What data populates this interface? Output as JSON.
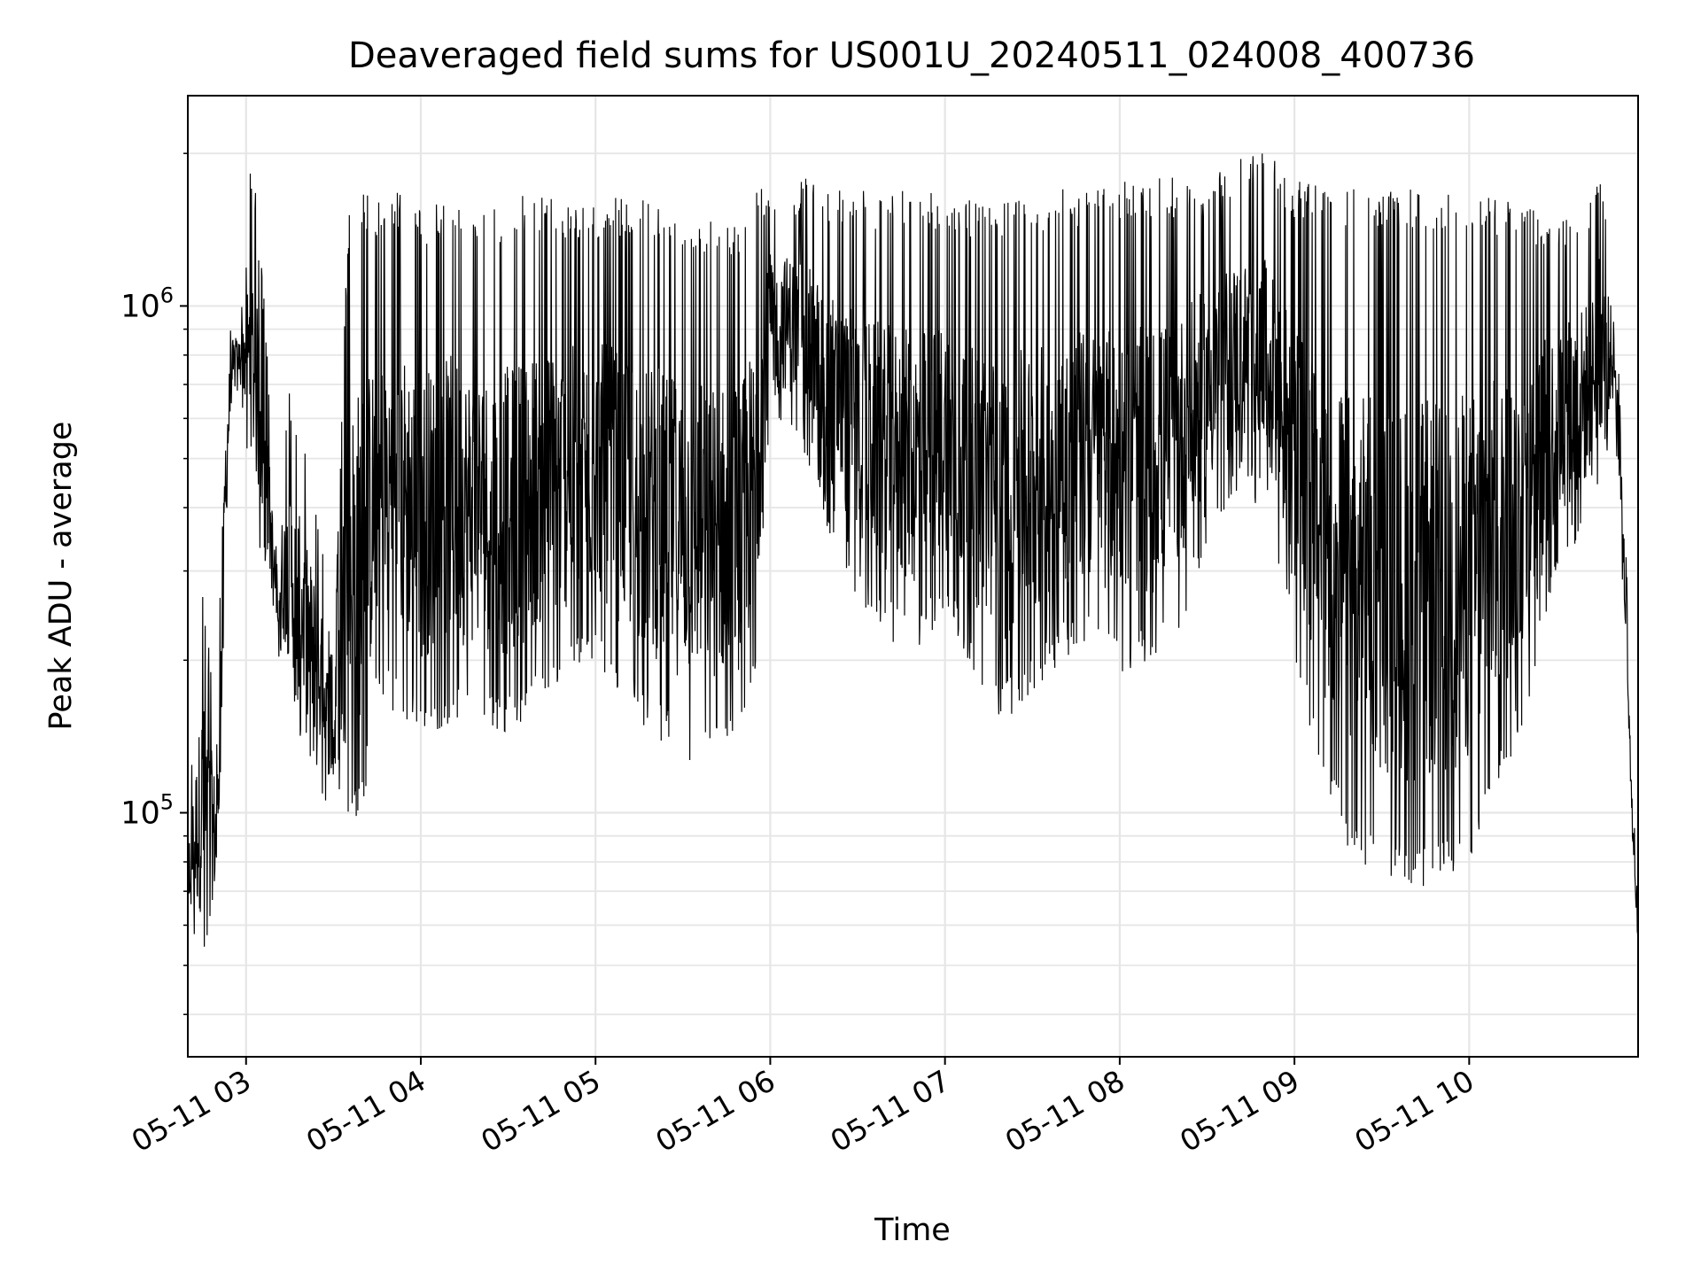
{
  "chart_data": {
    "type": "line",
    "title": "Deaveraged field sums for US001U_20240511_024008_400736",
    "xlabel": "Time",
    "ylabel": "Peak ADU - average",
    "yscale": "log",
    "grid": true,
    "legend": "none",
    "line_color": "#000000",
    "xlim": [
      "2024-05-11 02:40",
      "2024-05-11 10:58"
    ],
    "ylim": [
      33000,
      2600000
    ],
    "x_ticks": [
      {
        "value": "2024-05-11 03:00",
        "label": "05-11 03"
      },
      {
        "value": "2024-05-11 04:00",
        "label": "05-11 04"
      },
      {
        "value": "2024-05-11 05:00",
        "label": "05-11 05"
      },
      {
        "value": "2024-05-11 06:00",
        "label": "05-11 06"
      },
      {
        "value": "2024-05-11 07:00",
        "label": "05-11 07"
      },
      {
        "value": "2024-05-11 08:00",
        "label": "05-11 08"
      },
      {
        "value": "2024-05-11 09:00",
        "label": "05-11 09"
      },
      {
        "value": "2024-05-11 10:00",
        "label": "05-11 10"
      }
    ],
    "y_ticks": [
      {
        "value": 100000,
        "base": "10",
        "exp": "5"
      },
      {
        "value": 1000000,
        "base": "10",
        "exp": "6"
      }
    ],
    "series": [
      {
        "x": [
          "2024-05-11 02:40",
          "2024-05-11 02:45",
          "2024-05-11 02:50",
          "2024-05-11 02:53",
          "2024-05-11 02:55",
          "2024-05-11 02:58",
          "2024-05-11 03:02",
          "2024-05-11 03:06",
          "2024-05-11 03:10",
          "2024-05-11 03:15",
          "2024-05-11 03:20",
          "2024-05-11 03:25",
          "2024-05-11 03:30",
          "2024-05-11 03:35",
          "2024-05-11 03:40",
          "2024-05-11 03:45",
          "2024-05-11 03:50",
          "2024-05-11 03:55",
          "2024-05-11 04:00",
          "2024-05-11 04:10",
          "2024-05-11 04:20",
          "2024-05-11 04:30",
          "2024-05-11 04:40",
          "2024-05-11 04:50",
          "2024-05-11 05:00",
          "2024-05-11 05:10",
          "2024-05-11 05:20",
          "2024-05-11 05:30",
          "2024-05-11 05:40",
          "2024-05-11 05:50",
          "2024-05-11 05:55",
          "2024-05-11 06:00",
          "2024-05-11 06:10",
          "2024-05-11 06:20",
          "2024-05-11 06:30",
          "2024-05-11 06:40",
          "2024-05-11 06:50",
          "2024-05-11 07:00",
          "2024-05-11 07:10",
          "2024-05-11 07:20",
          "2024-05-11 07:30",
          "2024-05-11 07:40",
          "2024-05-11 07:50",
          "2024-05-11 08:00",
          "2024-05-11 08:10",
          "2024-05-11 08:20",
          "2024-05-11 08:30",
          "2024-05-11 08:40",
          "2024-05-11 08:50",
          "2024-05-11 09:00",
          "2024-05-11 09:10",
          "2024-05-11 09:20",
          "2024-05-11 09:30",
          "2024-05-11 09:40",
          "2024-05-11 09:50",
          "2024-05-11 10:00",
          "2024-05-11 10:10",
          "2024-05-11 10:20",
          "2024-05-11 10:30",
          "2024-05-11 10:40",
          "2024-05-11 10:45",
          "2024-05-11 10:50",
          "2024-05-11 10:53",
          "2024-05-11 10:56",
          "2024-05-11 10:58"
        ],
        "low": [
          60000,
          48000,
          60000,
          320000,
          600000,
          700000,
          400000,
          300000,
          220000,
          160000,
          130000,
          110000,
          100000,
          95000,
          100000,
          160000,
          160000,
          150000,
          140000,
          150000,
          150000,
          140000,
          160000,
          180000,
          200000,
          160000,
          140000,
          125000,
          125000,
          130000,
          180000,
          600000,
          550000,
          350000,
          260000,
          220000,
          200000,
          250000,
          180000,
          150000,
          170000,
          200000,
          210000,
          190000,
          190000,
          220000,
          340000,
          420000,
          400000,
          200000,
          110000,
          80000,
          75000,
          70000,
          72000,
          80000,
          110000,
          150000,
          300000,
          350000,
          450000,
          600000,
          250000,
          85000,
          50000
        ],
        "high": [
          100000,
          300000,
          150000,
          800000,
          1000000,
          950000,
          2100000,
          1100000,
          400000,
          700000,
          550000,
          400000,
          200000,
          1500000,
          1700000,
          1600000,
          1700000,
          1700000,
          1550000,
          1650000,
          1500000,
          1600000,
          1700000,
          1600000,
          1600000,
          1650000,
          1600000,
          1550000,
          1500000,
          1500000,
          1700000,
          1750000,
          1800000,
          1750000,
          1700000,
          1700000,
          1700000,
          1700000,
          1600000,
          1650000,
          1650000,
          1700000,
          1700000,
          1750000,
          1800000,
          1800000,
          1800000,
          2000000,
          2000000,
          1800000,
          1750000,
          1700000,
          1700000,
          1700000,
          1700000,
          1700000,
          1650000,
          1600000,
          1500000,
          1600000,
          2000000,
          1100000,
          500000,
          120000,
          90000
        ]
      }
    ]
  }
}
